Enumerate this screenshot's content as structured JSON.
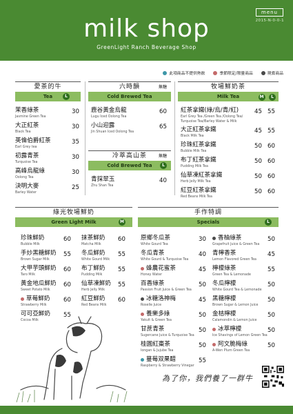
{
  "header": {
    "title": "milk shop",
    "subtitle": "GreenLight Ranch Beverage Shop",
    "menu_label": "menu",
    "code": "2015-N-0-0-1"
  },
  "legend": [
    {
      "label": "此項商品不提供熱飲",
      "color": "#3e97a8"
    },
    {
      "label": "季節限定/限量商品",
      "color": "#c46a6a"
    },
    {
      "label": "現煮商品",
      "color": "#4a4a4a"
    }
  ],
  "tea": {
    "title": "愛茶的牛",
    "bar": "Tea",
    "size_badge": "L",
    "items": [
      {
        "zh": "茉香綠茶",
        "en": "Jasmine Green Tea",
        "price": "30"
      },
      {
        "zh": "大正紅茶",
        "en": "Black Tea",
        "price": "30"
      },
      {
        "zh": "英倫伯爵紅茶",
        "en": "Earl Grey tea",
        "price": "35"
      },
      {
        "zh": "初露青茶",
        "en": "Turquoise Tea",
        "price": "30"
      },
      {
        "zh": "高峰烏龍綠",
        "en": "Oolong Tea",
        "price": "30"
      },
      {
        "zh": "決明大麥",
        "en": "Barley Water",
        "price": "25"
      }
    ]
  },
  "six_hour": {
    "title": "六時韻",
    "note": "無糖",
    "bar": "Cold Brewed Tea",
    "items": [
      {
        "zh": "鹿谷黃金烏龍",
        "en": "Lugu Iced Oolong Tea",
        "price": "60"
      },
      {
        "zh": "小山迎露",
        "en": "Jin Shuan Iced Oolong Tea",
        "price": "65"
      }
    ]
  },
  "cold_mountain": {
    "title": "冷萃高山茶",
    "note": "無糖",
    "bar": "Cold Brewed Tea",
    "size_badge": "L",
    "items": [
      {
        "zh": "青採翠玉",
        "en": "Zhu Shan Tea",
        "price": "40"
      }
    ]
  },
  "milk_tea": {
    "title": "牧場鮮奶茶",
    "bar": "Milk Tea",
    "size_badges": [
      "M",
      "L"
    ],
    "items": [
      {
        "zh": "紅茶拿鐵(綠/烏/青/紅)",
        "en": "Earl Grey Tea /Green Tea /Oolong Tea/",
        "en2": "Turquoise Tea/Barley Water & Milk",
        "price_m": "45",
        "price_l": "55"
      },
      {
        "zh": "大正紅茶拿鐵",
        "en": "Black Milk Tea",
        "price_m": "45",
        "price_l": "55"
      },
      {
        "zh": "珍珠紅茶拿鐵",
        "en": "Bubble Milk Tea",
        "price_m": "50",
        "price_l": "60"
      },
      {
        "zh": "布丁紅茶拿鐵",
        "en": "Pudding Milk Tea",
        "price_m": "50",
        "price_l": "60"
      },
      {
        "zh": "仙草凍紅茶拿鐵",
        "en": "Herb Jelly Milk Tea",
        "price_m": "50",
        "price_l": "60"
      },
      {
        "zh": "紅豆紅茶拿鐵",
        "en": "Red Beans Milk Tea",
        "price_m": "50",
        "price_l": "60"
      }
    ]
  },
  "fresh_milk": {
    "title": "綠光牧場鮮奶",
    "bar": "Green Light Milk",
    "size_badge": "M",
    "col1": [
      {
        "zh": "珍珠鮮奶",
        "en": "Bubble Milk",
        "price": "60"
      },
      {
        "zh": "手炒黑糖鮮奶",
        "en": "Brown Sugar Milk",
        "price": "55"
      },
      {
        "zh": "大甲芋頭鮮奶",
        "en": "Taro Milk",
        "price": "60"
      },
      {
        "zh": "黃金地瓜鮮奶",
        "en": "Sweet Potato Milk",
        "price": "60"
      },
      {
        "zh": "草莓鮮奶",
        "en": "Strawberry Milk",
        "price": "60",
        "dot": "#c46a6a"
      },
      {
        "zh": "可可亞鮮奶",
        "en": "Cocoa Milk",
        "price": "55"
      }
    ],
    "col2": [
      {
        "zh": "抹茶鮮奶",
        "en": "Matcha Milk",
        "price": "60"
      },
      {
        "zh": "冬瓜鮮奶",
        "en": "White Gourd Milk",
        "price": "55"
      },
      {
        "zh": "布丁鮮奶",
        "en": "Pudding Milk",
        "price": "55"
      },
      {
        "zh": "仙草凍鮮奶",
        "en": "Herb Jelly Milk",
        "price": "55"
      },
      {
        "zh": "紅豆鮮奶",
        "en": "Red Beans Milk",
        "price": "60"
      }
    ]
  },
  "specials": {
    "title": "手作特調",
    "bar": "Specials",
    "size_badge": "L",
    "col1": [
      {
        "zh": "原鄉冬瓜茶",
        "en": "White Gourd Tea",
        "price": "30"
      },
      {
        "zh": "冬瓜青茶",
        "en": "White Gourd & Turquoise Tea",
        "price": "40"
      },
      {
        "zh": "蜂農花蜜茶",
        "en": "Honey Water",
        "price": "45",
        "dot": "#c46a6a"
      },
      {
        "zh": "百香綠茶",
        "en": "Passion Fruit Juice & Green Tea",
        "price": "50"
      },
      {
        "zh": "冰糖洛神梅",
        "en": "Roselle Juice",
        "price": "45",
        "dot": "#4a4a4a"
      },
      {
        "zh": "養樂多綠",
        "en": "Yakult & Green Tea",
        "price": "50",
        "dot": "#c46a6a"
      },
      {
        "zh": "甘蔗青茶",
        "en": "Sugercane Juice & Turquoise Tea",
        "price": "50"
      },
      {
        "zh": "桂圓紅棗茶",
        "en": "longan & Jujube Tea",
        "price": "50"
      },
      {
        "zh": "蔓莓双果醋",
        "en": "Raspberry & Strawberry Vinegar",
        "price": "55",
        "dot": "#3e97a8"
      }
    ],
    "col2": [
      {
        "zh": "香柚綠茶",
        "en": "Grapefruit Juice & Green Tea",
        "price": "50",
        "dot": "#4a4a4a"
      },
      {
        "zh": "青檸香茶",
        "en": "Lemon Flavored Green Tea",
        "price": "45"
      },
      {
        "zh": "檸檬綠茶",
        "en": "Green Tea & Lemonade",
        "price": "55"
      },
      {
        "zh": "冬瓜檸檬",
        "en": "White Gourd Tea & Lemonade",
        "price": "50"
      },
      {
        "zh": "黑糖檸檬",
        "en": "Brown Sugar & Lemon Juice",
        "price": "50"
      },
      {
        "zh": "金桔檸檬",
        "en": "Calamondin & Lemon Juice",
        "price": "50"
      },
      {
        "zh": "冰萃檸檬",
        "en": "Ice Shavings of Lemon Green Tea",
        "price": "50",
        "dot": "#c46a6a"
      },
      {
        "zh": "阿文脆梅綠",
        "en": "A-Wen Plum Green Tea",
        "price": "50",
        "dot": "#c46a6a"
      }
    ]
  },
  "slogan": "為了你，我們養了一群牛",
  "colors": {
    "brand": "#4a8a32",
    "bar": "#8cbc60",
    "badge": "#2f6f1e"
  }
}
